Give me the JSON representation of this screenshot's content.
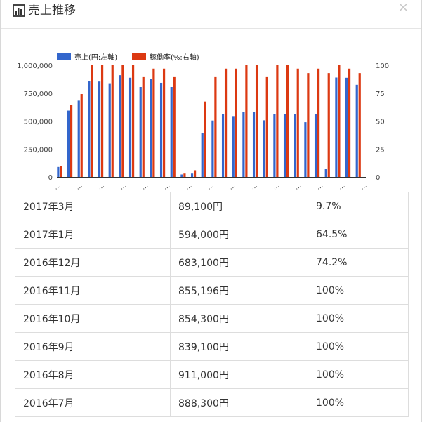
{
  "dialog": {
    "title": "売上推移",
    "close_label": "×",
    "icons": {
      "title": "bar-chart-icon",
      "close": "close-icon"
    }
  },
  "chart_data": {
    "type": "bar",
    "legend_position": "top-left",
    "series": [
      {
        "name": "売上(円:左軸)",
        "axis": "left",
        "color": "#3366cc",
        "values": [
          89100,
          594000,
          683100,
          855196,
          854300,
          839100,
          911000,
          888300,
          805000,
          880000,
          843000,
          805000,
          22000,
          30000,
          393000,
          505000,
          562000,
          545000,
          580000,
          580000,
          507000,
          562000,
          562000,
          562000,
          490000,
          562000,
          72000,
          890000,
          888000,
          825000
        ]
      },
      {
        "name": "稼働率(%:右軸)",
        "axis": "right",
        "color": "#dc3912",
        "values": [
          9.7,
          64.5,
          74.2,
          100,
          100,
          100,
          100,
          100,
          90,
          97,
          97,
          90,
          3,
          6,
          67.5,
          90,
          97,
          97,
          100,
          100,
          90,
          100,
          100,
          97,
          93,
          97,
          93,
          100,
          97,
          93
        ]
      }
    ],
    "left_axis": {
      "ticks": [
        "1,000,000",
        "750,000",
        "500,000",
        "250,000",
        "0"
      ],
      "ylim": [
        0,
        1000000
      ]
    },
    "right_axis": {
      "ticks": [
        "100",
        "75",
        "50",
        "25",
        "0"
      ],
      "ylim": [
        0,
        100
      ]
    },
    "x_tick_label": "…",
    "x_tick_count": 15
  },
  "table": {
    "rows": [
      {
        "month": "2017年3月",
        "sales": "89,100円",
        "rate": "9.7%"
      },
      {
        "month": "2017年1月",
        "sales": "594,000円",
        "rate": "64.5%"
      },
      {
        "month": "2016年12月",
        "sales": "683,100円",
        "rate": "74.2%"
      },
      {
        "month": "2016年11月",
        "sales": "855,196円",
        "rate": "100%"
      },
      {
        "month": "2016年10月",
        "sales": "854,300円",
        "rate": "100%"
      },
      {
        "month": "2016年9月",
        "sales": "839,100円",
        "rate": "100%"
      },
      {
        "month": "2016年8月",
        "sales": "911,000円",
        "rate": "100%"
      },
      {
        "month": "2016年7月",
        "sales": "888,300円",
        "rate": "100%"
      }
    ]
  }
}
